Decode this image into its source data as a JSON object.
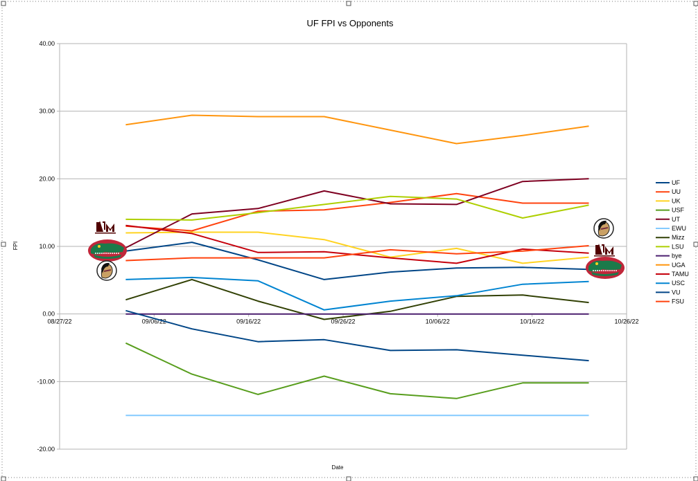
{
  "chart_data": {
    "type": "line",
    "title": "UF FPI vs Opponents",
    "xlabel": "Date",
    "ylabel": "FPI",
    "ylim": [
      -20,
      40
    ],
    "yticks": [
      "40.00",
      "30.00",
      "20.00",
      "10.00",
      "0.00",
      "-10.00",
      "-20.00"
    ],
    "xlim": [
      "08/27/22",
      "10/26/22"
    ],
    "xticks": [
      "08/27/22",
      "09/06/22",
      "09/16/22",
      "09/26/22",
      "10/06/22",
      "10/16/22",
      "10/26/22"
    ],
    "x": [
      "09/03/22",
      "09/10/22",
      "09/17/22",
      "09/24/22",
      "10/01/22",
      "10/08/22",
      "10/15/22",
      "10/22/22"
    ],
    "grid": true,
    "legend_position": "right",
    "series": [
      {
        "name": "UF",
        "color": "#004586",
        "values": [
          9.3,
          10.6,
          8.0,
          5.1,
          6.2,
          6.8,
          6.9,
          6.6
        ]
      },
      {
        "name": "UU",
        "color": "#ff420e",
        "values": [
          13.0,
          12.3,
          15.2,
          15.4,
          16.5,
          17.8,
          16.4,
          16.4
        ]
      },
      {
        "name": "UK",
        "color": "#ffd320",
        "values": [
          12.0,
          12.1,
          12.1,
          11.0,
          8.4,
          9.7,
          7.5,
          8.4
        ]
      },
      {
        "name": "USF",
        "color": "#579d1c",
        "values": [
          -4.3,
          -8.9,
          -11.9,
          -9.2,
          -11.8,
          -12.5,
          -10.2,
          -10.2
        ]
      },
      {
        "name": "UT",
        "color": "#7e0021",
        "values": [
          9.8,
          14.8,
          15.6,
          18.2,
          16.3,
          16.2,
          19.6,
          20.0
        ]
      },
      {
        "name": "EWU",
        "color": "#83caff",
        "values": [
          -15.0,
          -15.0,
          -15.0,
          -15.0,
          -15.0,
          -15.0,
          -15.0,
          -15.0
        ]
      },
      {
        "name": "Mizz",
        "color": "#314004",
        "values": [
          2.1,
          5.1,
          1.9,
          -0.8,
          0.4,
          2.6,
          2.8,
          1.7
        ]
      },
      {
        "name": "LSU",
        "color": "#aecf00",
        "values": [
          14.0,
          13.9,
          15.0,
          16.2,
          17.4,
          17.0,
          14.2,
          16.1
        ]
      },
      {
        "name": "bye",
        "color": "#4b1f6f",
        "values": [
          0.0,
          0.0,
          0.0,
          0.0,
          0.0,
          0.0,
          0.0,
          0.0
        ]
      },
      {
        "name": "UGA",
        "color": "#ff950e",
        "values": [
          28.0,
          29.4,
          29.2,
          29.2,
          27.2,
          25.2,
          26.4,
          27.8
        ]
      },
      {
        "name": "TAMU",
        "color": "#c5000b",
        "values": [
          13.1,
          11.9,
          9.1,
          9.2,
          8.3,
          7.5,
          9.6,
          9.0
        ]
      },
      {
        "name": "USC",
        "color": "#0084d1",
        "values": [
          5.1,
          5.4,
          4.9,
          0.6,
          1.9,
          2.7,
          4.4,
          4.8
        ]
      },
      {
        "name": "VU",
        "color": "#004586",
        "values": [
          0.5,
          -2.2,
          -4.1,
          -3.8,
          -5.4,
          -5.3,
          -6.1,
          -6.9
        ]
      },
      {
        "name": "FSU",
        "color": "#ff420e",
        "values": [
          7.9,
          8.3,
          8.3,
          8.3,
          9.5,
          8.9,
          9.3,
          10.1
        ]
      }
    ]
  },
  "logos": {
    "left": [
      "texas-am-logo-icon",
      "gators-logo-icon",
      "fsu-seminole-logo-icon"
    ],
    "right": [
      "fsu-seminole-logo-icon",
      "texas-am-logo-icon",
      "gators-logo-icon"
    ],
    "colors": {
      "gator_green": "#1b7a4a",
      "gator_red": "#c0273a",
      "aggie_maroon": "#500000",
      "fsu_garnet": "#782f40"
    }
  }
}
